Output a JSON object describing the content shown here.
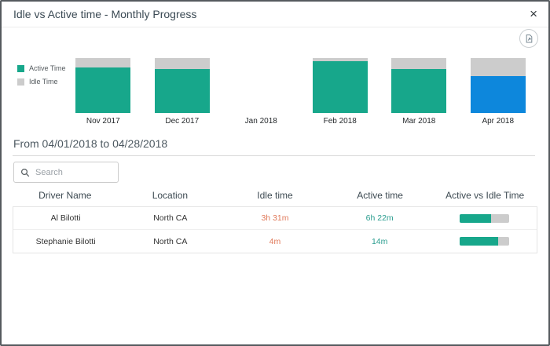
{
  "modal": {
    "title": "Idle vs Active time - Monthly Progress",
    "close_label": "×"
  },
  "colors": {
    "active_bar": "#17a78b",
    "idle_bar": "#cccccc",
    "selected_bar": "#0d87dc",
    "idle_value_text": "#e0795a",
    "active_value_text": "#2a9d8f"
  },
  "chart_data": {
    "type": "bar",
    "stacked": true,
    "units": "percent",
    "categories": [
      "Nov 2017",
      "Dec 2017",
      "Jan 2018",
      "Feb 2018",
      "Mar 2018",
      "Apr 2018"
    ],
    "series": [
      {
        "name": "Active Time",
        "color": "#17a78b",
        "values": [
          83,
          80,
          0,
          94,
          80,
          67
        ]
      },
      {
        "name": "Idle Time",
        "color": "#cccccc",
        "values": [
          17,
          20,
          0,
          6,
          20,
          33
        ]
      }
    ],
    "selected_category": "Apr 2018",
    "selected_color": "#0d87dc",
    "legend_position": "left",
    "ylim": [
      0,
      100
    ],
    "grid": false
  },
  "period": {
    "label": "From 04/01/2018 to 04/28/2018"
  },
  "search": {
    "placeholder": "Search"
  },
  "table": {
    "columns": [
      "Driver Name",
      "Location",
      "Idle time",
      "Active time",
      "Active vs Idle Time"
    ],
    "rows": [
      {
        "driver": "Al Bilotti",
        "location": "North CA",
        "idle_time": "3h 31m",
        "active_time": "6h 22m",
        "active_pct": 64
      },
      {
        "driver": "Stephanie Bilotti",
        "location": "North CA",
        "idle_time": "4m",
        "active_time": "14m",
        "active_pct": 78
      }
    ]
  }
}
